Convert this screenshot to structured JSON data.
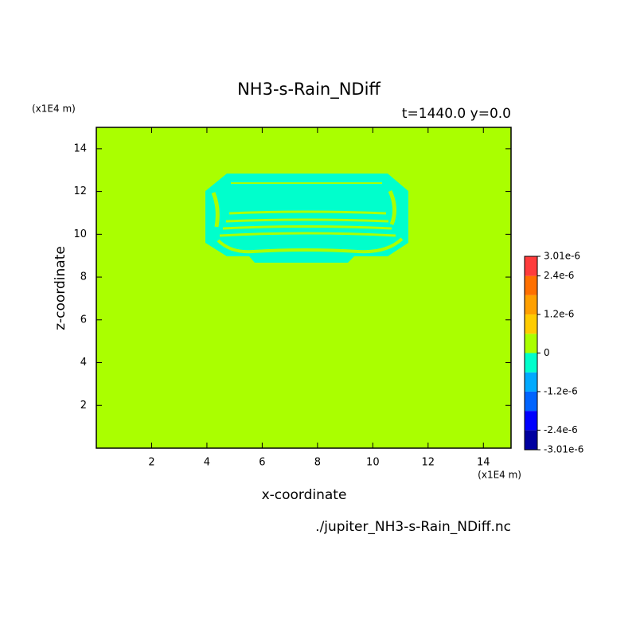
{
  "chart_data": {
    "type": "contour",
    "title": "NH3-s-Rain_NDiff",
    "subtitle": "t=1440.0 y=0.0",
    "x_label": "x-coordinate",
    "y_label": "z-coordinate",
    "x_unit": "(x1E4 m)",
    "y_unit": "(x1E4 m)",
    "source": "./jupiter_NH3-s-Rain_NDiff.nc",
    "xlim": [
      0,
      15
    ],
    "ylim": [
      0,
      15
    ],
    "xticks": [
      2,
      4,
      6,
      8,
      10,
      12,
      14
    ],
    "yticks": [
      2,
      4,
      6,
      8,
      10,
      12,
      14
    ],
    "colorbar": {
      "levels": [
        -3.01e-06,
        -2.4e-06,
        -1.8e-06,
        -1.2e-06,
        -6e-07,
        0,
        6e-07,
        1.2e-06,
        1.8e-06,
        2.4e-06,
        3.01e-06
      ],
      "colors": [
        "#0000a0",
        "#0000ff",
        "#0064ff",
        "#00aaff",
        "#00ffcc",
        "#aaff00",
        "#ffcc00",
        "#ffa000",
        "#ff7000",
        "#ff3c3c"
      ],
      "ticks": [
        {
          "value": -3.01e-06,
          "label": "-3.01e-6"
        },
        {
          "value": -2.4e-06,
          "label": "-2.4e-6"
        },
        {
          "value": -1.2e-06,
          "label": "-1.2e-6"
        },
        0,
        {
          "value": 1.2e-06,
          "label": "1.2e-6"
        },
        {
          "value": 2.4e-06,
          "label": "2.4e-6"
        },
        {
          "value": 3.01e-06,
          "label": "3.01e-6"
        }
      ]
    }
  }
}
